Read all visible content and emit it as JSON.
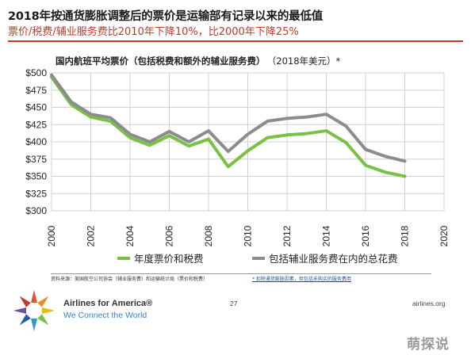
{
  "header": {
    "title": "2018年按通货膨胀调整后的票价是运输部有记录以来的最低值",
    "subtitle": "票价/税费/辅业服务费比2010年下降10%，比2000年下降25%"
  },
  "chart_title": {
    "main": "国内航班平均票价（包括税费和额外的辅业服务费）",
    "unit": "（2018年美元）*"
  },
  "colors": {
    "accent_red": "#c0392b",
    "series_green": "#7ac143",
    "series_gray": "#8c8c8c",
    "grid": "#d0d0d0",
    "link_blue": "#1f4e99"
  },
  "chart_data": {
    "type": "line",
    "x": [
      2000,
      2001,
      2002,
      2003,
      2004,
      2005,
      2006,
      2007,
      2008,
      2009,
      2010,
      2011,
      2012,
      2013,
      2014,
      2015,
      2016,
      2017,
      2018
    ],
    "series": [
      {
        "name": "年度票价和税费",
        "color": "#7ac143",
        "values": [
          494,
          454,
          436,
          430,
          406,
          395,
          409,
          394,
          404,
          364,
          387,
          406,
          410,
          412,
          416,
          399,
          366,
          356,
          350
        ]
      },
      {
        "name": "包括辅业服务费在内的总花费",
        "color": "#8c8c8c",
        "values": [
          497,
          458,
          440,
          435,
          411,
          400,
          415,
          400,
          416,
          386,
          411,
          430,
          434,
          436,
          440,
          423,
          389,
          379,
          372
        ]
      }
    ],
    "xlim": [
      2000,
      2020
    ],
    "ylim": [
      300,
      500
    ],
    "x_ticks": [
      "2000",
      "2002",
      "2004",
      "2006",
      "2008",
      "2010",
      "2012",
      "2014",
      "2016",
      "2018",
      "2020"
    ],
    "y_ticks": [
      "$300",
      "$325",
      "$350",
      "$375",
      "$400",
      "$425",
      "$450",
      "$475",
      "$500"
    ],
    "grid": "both"
  },
  "source": {
    "left": "资料来源：美国航空公司协会（辅业服务费）和运输统计局（票价和税费）",
    "right": "* 扣除通货膨胀因素，但包括未购买的服务费用"
  },
  "footer": {
    "org": "Airlines for America®",
    "tagline": "We Connect the World",
    "page": "27",
    "url": "airlines.org"
  },
  "watermark": "萌探说"
}
